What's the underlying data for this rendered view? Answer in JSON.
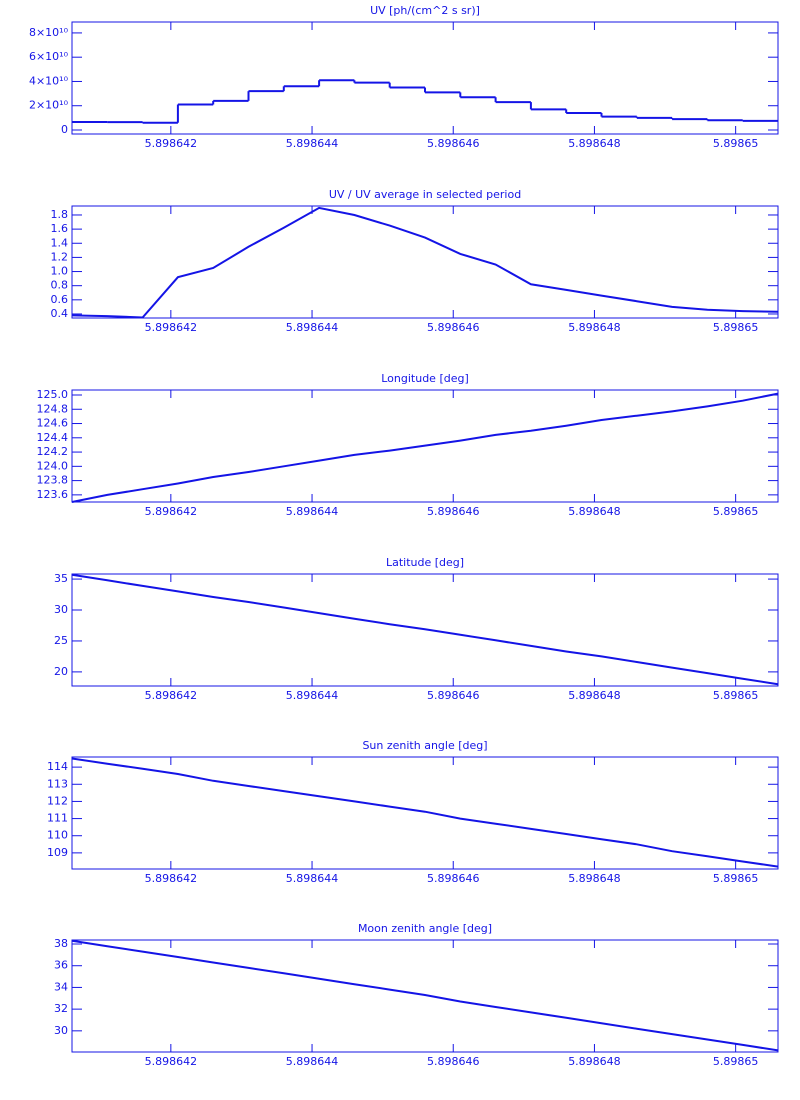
{
  "chart_data": [
    {
      "type": "line",
      "step": true,
      "title": "UV [ph/(cm^2 s sr)]",
      "color": "#1414e6",
      "x": [
        5.8986406,
        5.8986411,
        5.8986416,
        5.8986421,
        5.8986426,
        5.8986431,
        5.8986436,
        5.8986441,
        5.8986446,
        5.8986451,
        5.8986456,
        5.8986461,
        5.8986466,
        5.8986471,
        5.8986476,
        5.8986481,
        5.8986486,
        5.8986491,
        5.8986496,
        5.8986501,
        5.8986506
      ],
      "values": [
        6600000000.0,
        6500000000.0,
        6000000000.0,
        21000000000.0,
        24000000000.0,
        32000000000.0,
        36000000000.0,
        41000000000.0,
        39000000000.0,
        35000000000.0,
        31000000000.0,
        27000000000.0,
        23000000000.0,
        17000000000.0,
        14000000000.0,
        11000000000.0,
        10000000000.0,
        9000000000.0,
        8000000000.0,
        7500000000.0,
        7500000000.0
      ],
      "xlim": [
        5.8986406,
        5.8986506
      ],
      "xticks": [
        5.898642,
        5.898644,
        5.898646,
        5.898648,
        5.89865
      ],
      "ylim": [
        -3300000000.0,
        89000000000.0
      ],
      "yticks": [
        0,
        {
          "value": 20000000000.0,
          "label": "2×10¹⁰"
        },
        {
          "value": 40000000000.0,
          "label": "4×10¹⁰"
        },
        {
          "value": 60000000000.0,
          "label": "6×10¹⁰"
        },
        {
          "value": 80000000000.0,
          "label": "8×10¹⁰"
        }
      ]
    },
    {
      "type": "line",
      "title": "UV / UV average in selected period",
      "color": "#1414e6",
      "x": [
        5.8986406,
        5.8986411,
        5.8986416,
        5.8986421,
        5.8986426,
        5.8986431,
        5.8986436,
        5.8986441,
        5.8986446,
        5.8986451,
        5.8986456,
        5.8986461,
        5.8986466,
        5.8986471,
        5.8986476,
        5.8986481,
        5.8986486,
        5.8986491,
        5.8986496,
        5.8986501,
        5.8986506
      ],
      "values": [
        0.38,
        0.37,
        0.35,
        0.92,
        1.05,
        1.35,
        1.62,
        1.9,
        1.8,
        1.65,
        1.48,
        1.25,
        1.1,
        0.82,
        0.74,
        0.66,
        0.58,
        0.5,
        0.46,
        0.44,
        0.43
      ],
      "xlim": [
        5.8986406,
        5.8986506
      ],
      "xticks": [
        5.898642,
        5.898644,
        5.898646,
        5.898648,
        5.89865
      ],
      "ylim": [
        0.343,
        1.927
      ],
      "yticks": [
        0.4,
        0.6,
        0.8,
        {
          "value": 1,
          "label": "1.0"
        },
        1.2,
        1.4,
        1.6,
        1.8
      ]
    },
    {
      "type": "line",
      "title": "Longitude [deg]",
      "color": "#1414e6",
      "x": [
        5.8986406,
        5.8986411,
        5.8986416,
        5.8986421,
        5.8986426,
        5.8986431,
        5.8986436,
        5.8986441,
        5.8986446,
        5.8986451,
        5.8986456,
        5.8986461,
        5.8986466,
        5.8986471,
        5.8986476,
        5.8986481,
        5.8986486,
        5.8986491,
        5.8986496,
        5.8986501,
        5.8986506
      ],
      "values": [
        123.5,
        123.6,
        123.68,
        123.76,
        123.85,
        123.92,
        124.0,
        124.08,
        124.16,
        124.22,
        124.29,
        124.36,
        124.44,
        124.5,
        124.57,
        124.65,
        124.71,
        124.77,
        124.84,
        124.92,
        125.02
      ],
      "xlim": [
        5.8986406,
        5.8986506
      ],
      "xticks": [
        5.898642,
        5.898644,
        5.898646,
        5.898648,
        5.89865
      ],
      "ylim": [
        123.5,
        125.07
      ],
      "yticks": [
        123.6,
        123.8,
        {
          "value": 124,
          "label": "124.0"
        },
        124.2,
        124.4,
        124.6,
        124.8,
        {
          "value": 125,
          "label": "125.0"
        }
      ]
    },
    {
      "type": "line",
      "title": "Latitude [deg]",
      "color": "#1414e6",
      "x": [
        5.8986406,
        5.8986411,
        5.8986416,
        5.8986421,
        5.8986426,
        5.8986431,
        5.8986436,
        5.8986441,
        5.8986446,
        5.8986451,
        5.8986456,
        5.8986461,
        5.8986466,
        5.8986471,
        5.8986476,
        5.8986481,
        5.8986486,
        5.8986491,
        5.8986496,
        5.8986501,
        5.8986506
      ],
      "values": [
        35.7,
        34.8,
        33.9,
        33.0,
        32.1,
        31.3,
        30.4,
        29.5,
        28.6,
        27.7,
        26.9,
        26.0,
        25.1,
        24.2,
        23.3,
        22.5,
        21.6,
        20.7,
        19.8,
        18.9,
        18.0
      ],
      "xlim": [
        5.8986406,
        5.8986506
      ],
      "xticks": [
        5.898642,
        5.898644,
        5.898646,
        5.898648,
        5.89865
      ],
      "ylim": [
        17.72,
        35.82
      ],
      "yticks": [
        20,
        25,
        30,
        35
      ]
    },
    {
      "type": "line",
      "title": "Sun zenith angle [deg]",
      "color": "#1414e6",
      "x": [
        5.8986406,
        5.8986411,
        5.8986416,
        5.8986421,
        5.8986426,
        5.8986431,
        5.8986436,
        5.8986441,
        5.8986446,
        5.8986451,
        5.8986456,
        5.8986461,
        5.8986466,
        5.8986471,
        5.8986476,
        5.8986481,
        5.8986486,
        5.8986491,
        5.8986496,
        5.8986501,
        5.8986506
      ],
      "values": [
        114.5,
        114.2,
        113.9,
        113.6,
        113.2,
        112.9,
        112.6,
        112.3,
        112.0,
        111.7,
        111.4,
        111.0,
        110.7,
        110.4,
        110.1,
        109.8,
        109.5,
        109.1,
        108.8,
        108.5,
        108.2
      ],
      "xlim": [
        5.8986406,
        5.8986506
      ],
      "xticks": [
        5.898642,
        5.898644,
        5.898646,
        5.898648,
        5.89865
      ],
      "ylim": [
        108.06,
        114.59
      ],
      "yticks": [
        109,
        110,
        111,
        112,
        113,
        114
      ]
    },
    {
      "type": "line",
      "title": "Moon zenith angle [deg]",
      "color": "#1414e6",
      "x": [
        5.8986406,
        5.8986411,
        5.8986416,
        5.8986421,
        5.8986426,
        5.8986431,
        5.8986436,
        5.8986441,
        5.8986446,
        5.8986451,
        5.8986456,
        5.8986461,
        5.8986466,
        5.8986471,
        5.8986476,
        5.8986481,
        5.8986486,
        5.8986491,
        5.8986496,
        5.8986501,
        5.8986506
      ],
      "values": [
        38.3,
        37.8,
        37.3,
        36.8,
        36.3,
        35.8,
        35.3,
        34.8,
        34.3,
        33.8,
        33.3,
        32.7,
        32.2,
        31.7,
        31.2,
        30.7,
        30.2,
        29.7,
        29.2,
        28.7,
        28.2
      ],
      "xlim": [
        5.8986406,
        5.8986506
      ],
      "xticks": [
        5.898642,
        5.898644,
        5.898646,
        5.898648,
        5.89865
      ],
      "ylim": [
        28.05,
        38.37
      ],
      "yticks": [
        30,
        32,
        34,
        36,
        38
      ]
    }
  ]
}
